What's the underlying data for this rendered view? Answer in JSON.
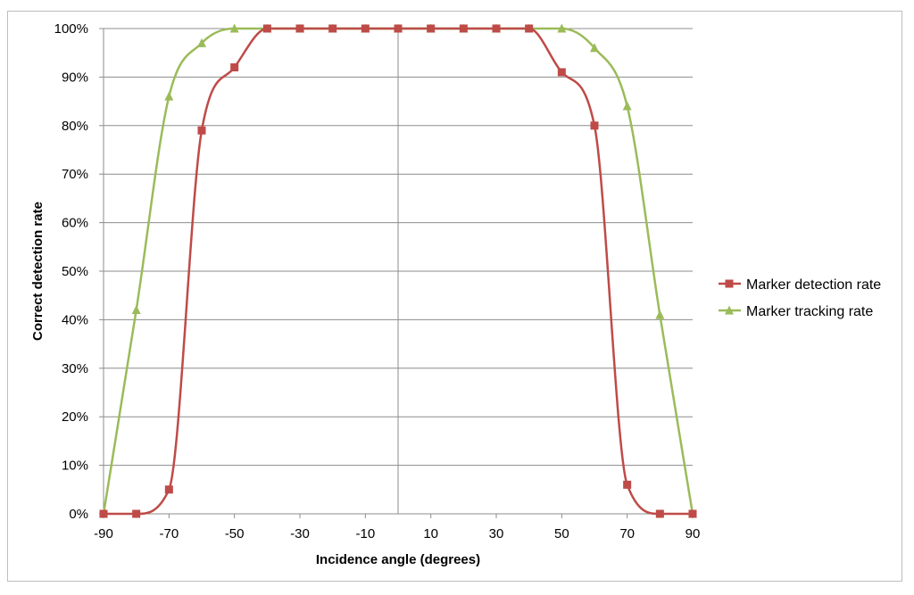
{
  "chart_data": {
    "type": "line",
    "title": "",
    "xlabel": "Incidence angle (degrees)",
    "ylabel": "Correct detection rate",
    "xlim": [
      -90,
      90
    ],
    "ylim": [
      0,
      100
    ],
    "x_ticks": [
      "-90",
      "-70",
      "-50",
      "-30",
      "-10",
      "10",
      "30",
      "50",
      "70",
      "90"
    ],
    "y_ticks": [
      "0%",
      "10%",
      "20%",
      "30%",
      "40%",
      "50%",
      "60%",
      "70%",
      "80%",
      "90%",
      "100%"
    ],
    "grid": "horizontal",
    "legend_position": "right",
    "series": [
      {
        "name": "Marker detection rate",
        "color": "#be4b48",
        "marker": "square",
        "x": [
          -90,
          -80,
          -70,
          -60,
          -50,
          -40,
          -30,
          -20,
          -10,
          0,
          10,
          20,
          30,
          40,
          50,
          60,
          70,
          80,
          90
        ],
        "values": [
          0,
          0,
          5,
          79,
          92,
          100,
          100,
          100,
          100,
          100,
          100,
          100,
          100,
          100,
          91,
          80,
          6,
          0,
          0
        ]
      },
      {
        "name": "Marker tracking rate",
        "color": "#9bbb59",
        "marker": "triangle",
        "x": [
          -90,
          -80,
          -70,
          -60,
          -50,
          -40,
          -30,
          -20,
          -10,
          0,
          10,
          20,
          30,
          40,
          50,
          60,
          70,
          80,
          90
        ],
        "values": [
          0,
          42,
          86,
          97,
          100,
          100,
          100,
          100,
          100,
          100,
          100,
          100,
          100,
          100,
          100,
          96,
          84,
          41,
          0
        ]
      }
    ]
  }
}
